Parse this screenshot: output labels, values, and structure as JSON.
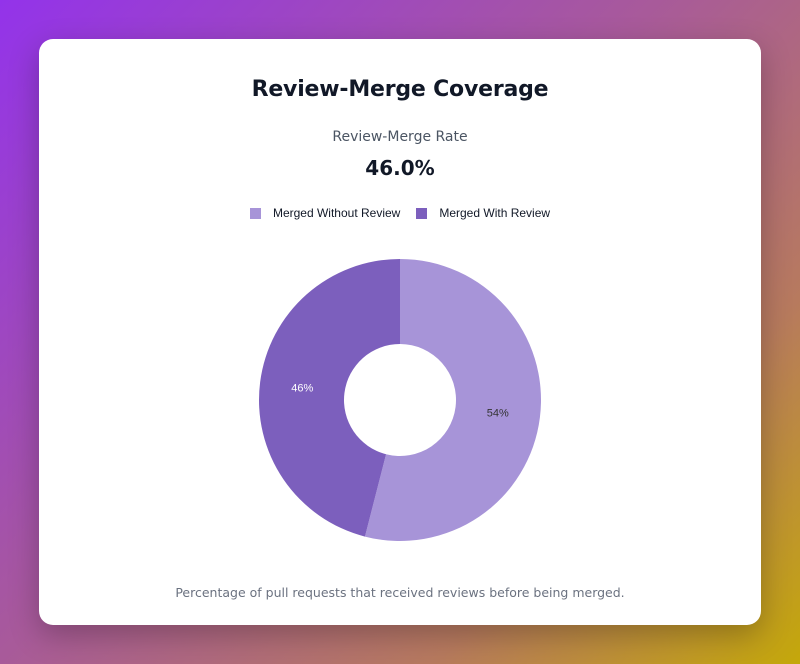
{
  "card": {
    "title": "Review-Merge Coverage",
    "rate_label": "Review-Merge Rate",
    "rate_value": "46.0%",
    "footnote": "Percentage of pull requests that received reviews before being merged."
  },
  "chart_data": {
    "type": "pie",
    "donut": true,
    "legend_position": "top",
    "categories": [
      "Merged Without Review",
      "Merged With Review"
    ],
    "values": [
      54,
      46
    ],
    "labels": [
      "54%",
      "46%"
    ],
    "colors": [
      "#a794d8",
      "#7c5fbd"
    ],
    "label_colors": [
      "#333333",
      "#ffffff"
    ]
  }
}
